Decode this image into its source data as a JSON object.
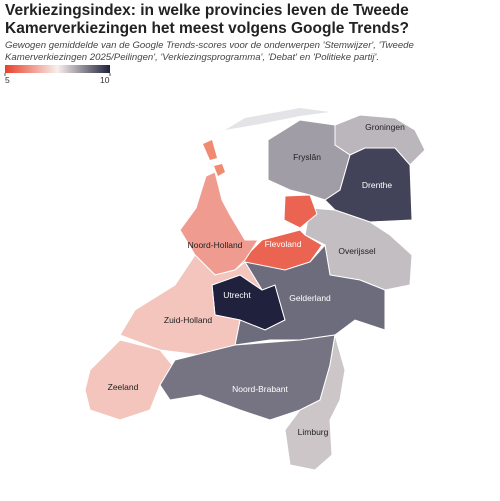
{
  "title": "Verkiezingsindex: in welke provincies leven de Tweede Kamerverkiezingen het meest volgens Google Trends?",
  "subtitle": "Gewogen gemiddelde van de Google Trends-scores voor de onderwerpen 'Stemwijzer', 'Tweede Kamerverkiezingen 2025/Peilingen', 'Verkiezingsprogramma', 'Debat' en 'Politieke partij'.",
  "legend": {
    "min": 5,
    "max": 10,
    "ticks": [
      5,
      10
    ],
    "colors": [
      "#e8402a",
      "#f7efec",
      "#20223d"
    ]
  },
  "provinces": [
    {
      "name": "Groningen",
      "value": 8.2
    },
    {
      "name": "Fryslân",
      "value": 8.5
    },
    {
      "name": "Drenthe",
      "value": 9.6
    },
    {
      "name": "Overijssel",
      "value": 8.1
    },
    {
      "name": "Flevoland",
      "value": 5.5
    },
    {
      "name": "Noord-Holland",
      "value": 6.3
    },
    {
      "name": "Utrecht",
      "value": 10
    },
    {
      "name": "Gelderland",
      "value": 9.1
    },
    {
      "name": "Zuid-Holland",
      "value": 6.9
    },
    {
      "name": "Zeeland",
      "value": 6.9
    },
    {
      "name": "Noord-Brabant",
      "value": 9.0
    },
    {
      "name": "Limburg",
      "value": 8.0
    }
  ]
}
